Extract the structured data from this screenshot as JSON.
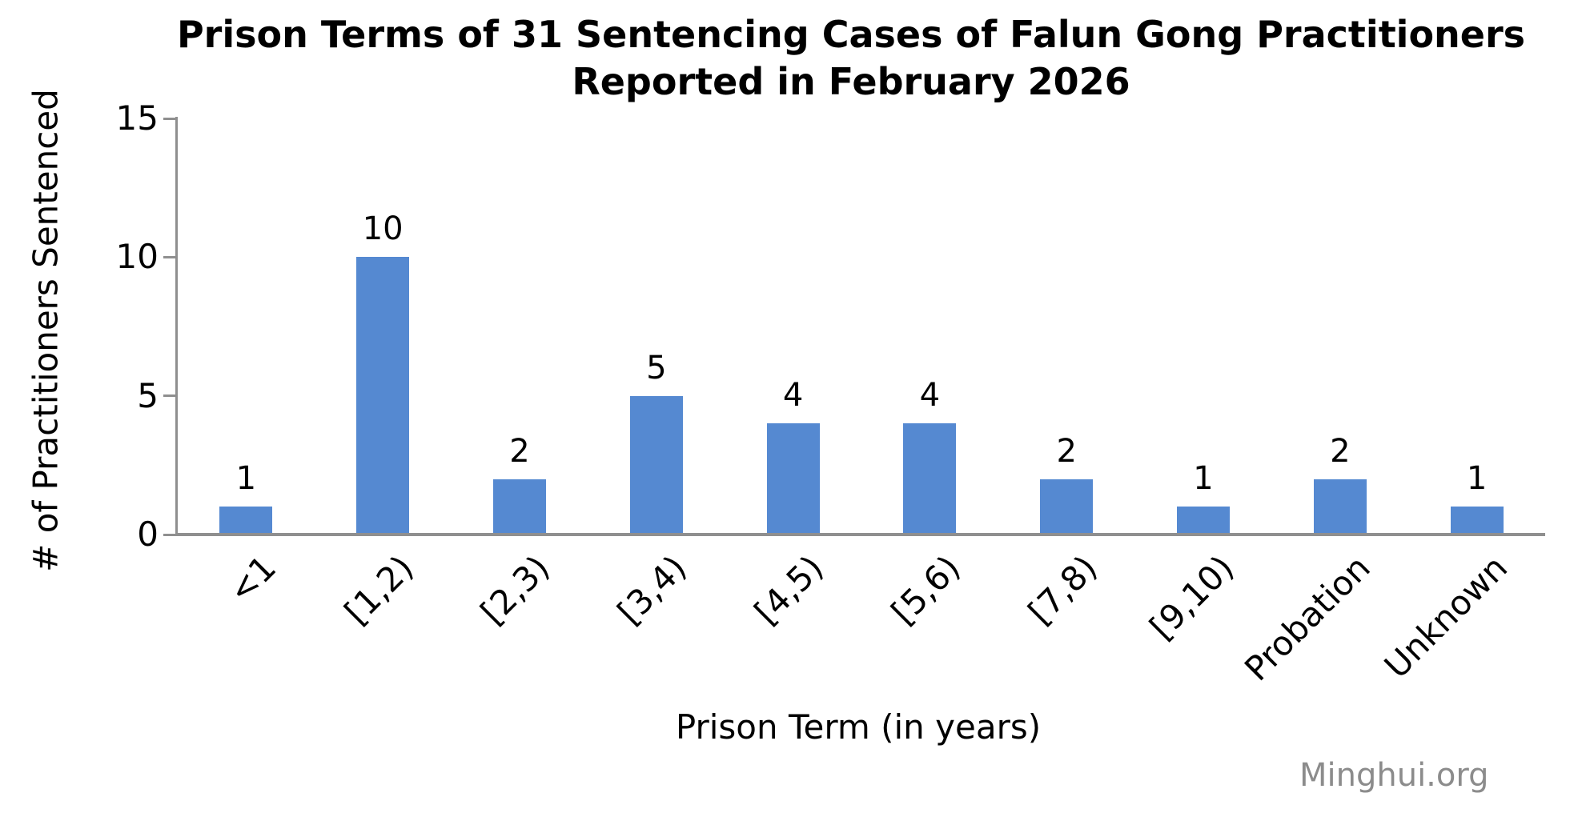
{
  "chart_data": {
    "type": "bar",
    "title": "Prison Terms of 31 Sentencing Cases of Falun Gong Practitioners Reported in February 2026",
    "title_lines": [
      "Prison Terms of 31 Sentencing Cases of Falun Gong Practitioners",
      "Reported in February 2026"
    ],
    "categories": [
      "<1",
      "[1,2)",
      "[2,3)",
      "[3,4)",
      "[4,5)",
      "[5,6)",
      "[7,8)",
      "[9,10)",
      "Probation",
      "Unknown"
    ],
    "values": [
      1,
      10,
      2,
      5,
      4,
      4,
      2,
      1,
      2,
      1
    ],
    "xlabel": "Prison Term (in years)",
    "ylabel": "# of Practitioners Sentenced",
    "yticks": [
      0,
      5,
      10,
      15
    ],
    "ylim": [
      0,
      15
    ],
    "grid": false,
    "legend": false,
    "data_labels_shown": true,
    "bar_color": "#5589D1",
    "axis_color": "#8F8F8F",
    "text_color": "#000000",
    "watermark": "Minghui.org",
    "watermark_color": "#8C8C8C"
  }
}
